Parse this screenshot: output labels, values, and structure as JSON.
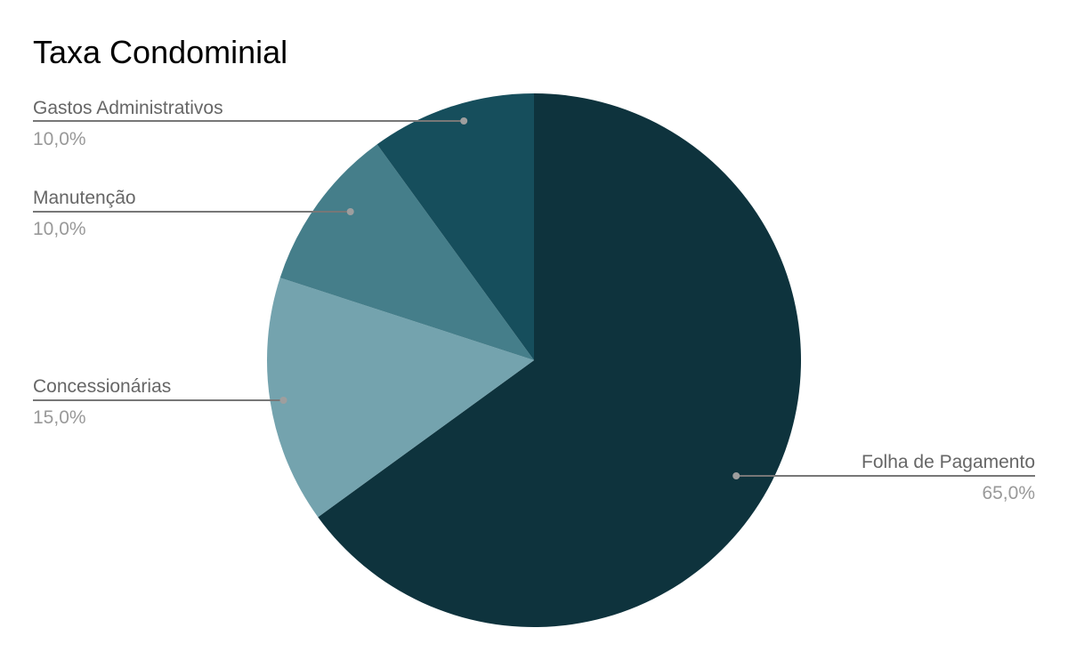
{
  "chart_data": {
    "type": "pie",
    "title": "Taxa Condominial",
    "slices": [
      {
        "label": "Folha de Pagamento",
        "value": 65.0,
        "display": "65,0%",
        "color": "#0e333d"
      },
      {
        "label": "Concessionárias",
        "value": 15.0,
        "display": "15,0%",
        "color": "#74a3ae"
      },
      {
        "label": "Manutenção",
        "value": 10.0,
        "display": "10,0%",
        "color": "#457e8a"
      },
      {
        "label": "Gastos Administrativos",
        "value": 10.0,
        "display": "10,0%",
        "color": "#164e5c"
      }
    ],
    "start_angle": "12 o'clock",
    "direction": "clockwise",
    "legend": "labeled slices with leader lines"
  }
}
